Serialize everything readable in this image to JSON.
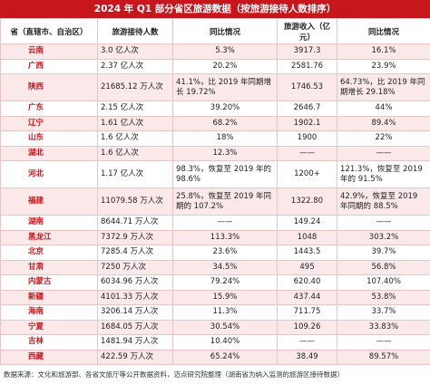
{
  "header": {
    "title": "2024 年 Q1 部分省区旅游数据（按旅游接待人数排序）"
  },
  "table": {
    "columns": [
      "省（直辖市、自治区）",
      "旅游接待人数",
      "同比情况",
      "旅游收入（亿元）",
      "同比情况"
    ],
    "rows": [
      [
        "云南",
        "3.0 亿人次",
        "5.3%",
        "3917.3",
        "16.1%"
      ],
      [
        "广西",
        "2.37 亿人次",
        "20.2%",
        "2581.76",
        "23.9%"
      ],
      [
        "陕西",
        "21685.12 万人次",
        "41.1%，比 2019 年同期增长 19.72%",
        "1746.53",
        "64.73%，比 2019 年同期增长 29.18%"
      ],
      [
        "广东",
        "2.15 亿人次",
        "39.20%",
        "2646.7",
        "44%"
      ],
      [
        "辽宁",
        "1.61 亿人次",
        "68.2%",
        "1902.1",
        "89.4%"
      ],
      [
        "山东",
        "1.6 亿人次",
        "18%",
        "1900",
        "22%"
      ],
      [
        "湖北",
        "1.6 亿人次",
        "12.3%",
        "——",
        "——"
      ],
      [
        "河北",
        "1.17 亿人次",
        "98.3%，恢复至 2019 年的 98.6%",
        "1200+",
        "121.3%，恢复至 2019 年的 91.5%"
      ],
      [
        "福建",
        "11079.58 万人次",
        "25.8%，恢复至 2019 年同期的 107.2%",
        "1322.80",
        "42.9%，恢复至 2019 年同期的 88.5%"
      ],
      [
        "湖南",
        "8644.71 万人次",
        "——",
        "149.24",
        "——"
      ],
      [
        "黑龙江",
        "7372.9 万人次",
        "113.3%",
        "1048",
        "303.2%"
      ],
      [
        "北京",
        "7285.4 万人次",
        "23.6%",
        "1443.5",
        "39.7%"
      ],
      [
        "甘肃",
        "7250 万人次",
        "34.5%",
        "495",
        "56.8%"
      ],
      [
        "内蒙古",
        "6034.96 万人次",
        "79.24%",
        "620.40",
        "107.40%"
      ],
      [
        "新疆",
        "4101.33 万人次",
        "15.9%",
        "437.44",
        "53.8%"
      ],
      [
        "海南",
        "3206.14 万人次",
        "11.3%",
        "711.75",
        "33.7%"
      ],
      [
        "宁夏",
        "1684.05 万人次",
        "30.54%",
        "109.26",
        "33.83%"
      ],
      [
        "吉林",
        "1481.94 万人次",
        "10.40%",
        "——",
        "——"
      ],
      [
        "西藏",
        "422.59 万人次",
        "65.24%",
        "38.49",
        "89.57%"
      ]
    ]
  },
  "footer": "数据来源：文化和旅游部、各省文旅厅等公开数据资料，迈点研究院整理（湖南省为纳入监测的旅游区接待数据）"
}
